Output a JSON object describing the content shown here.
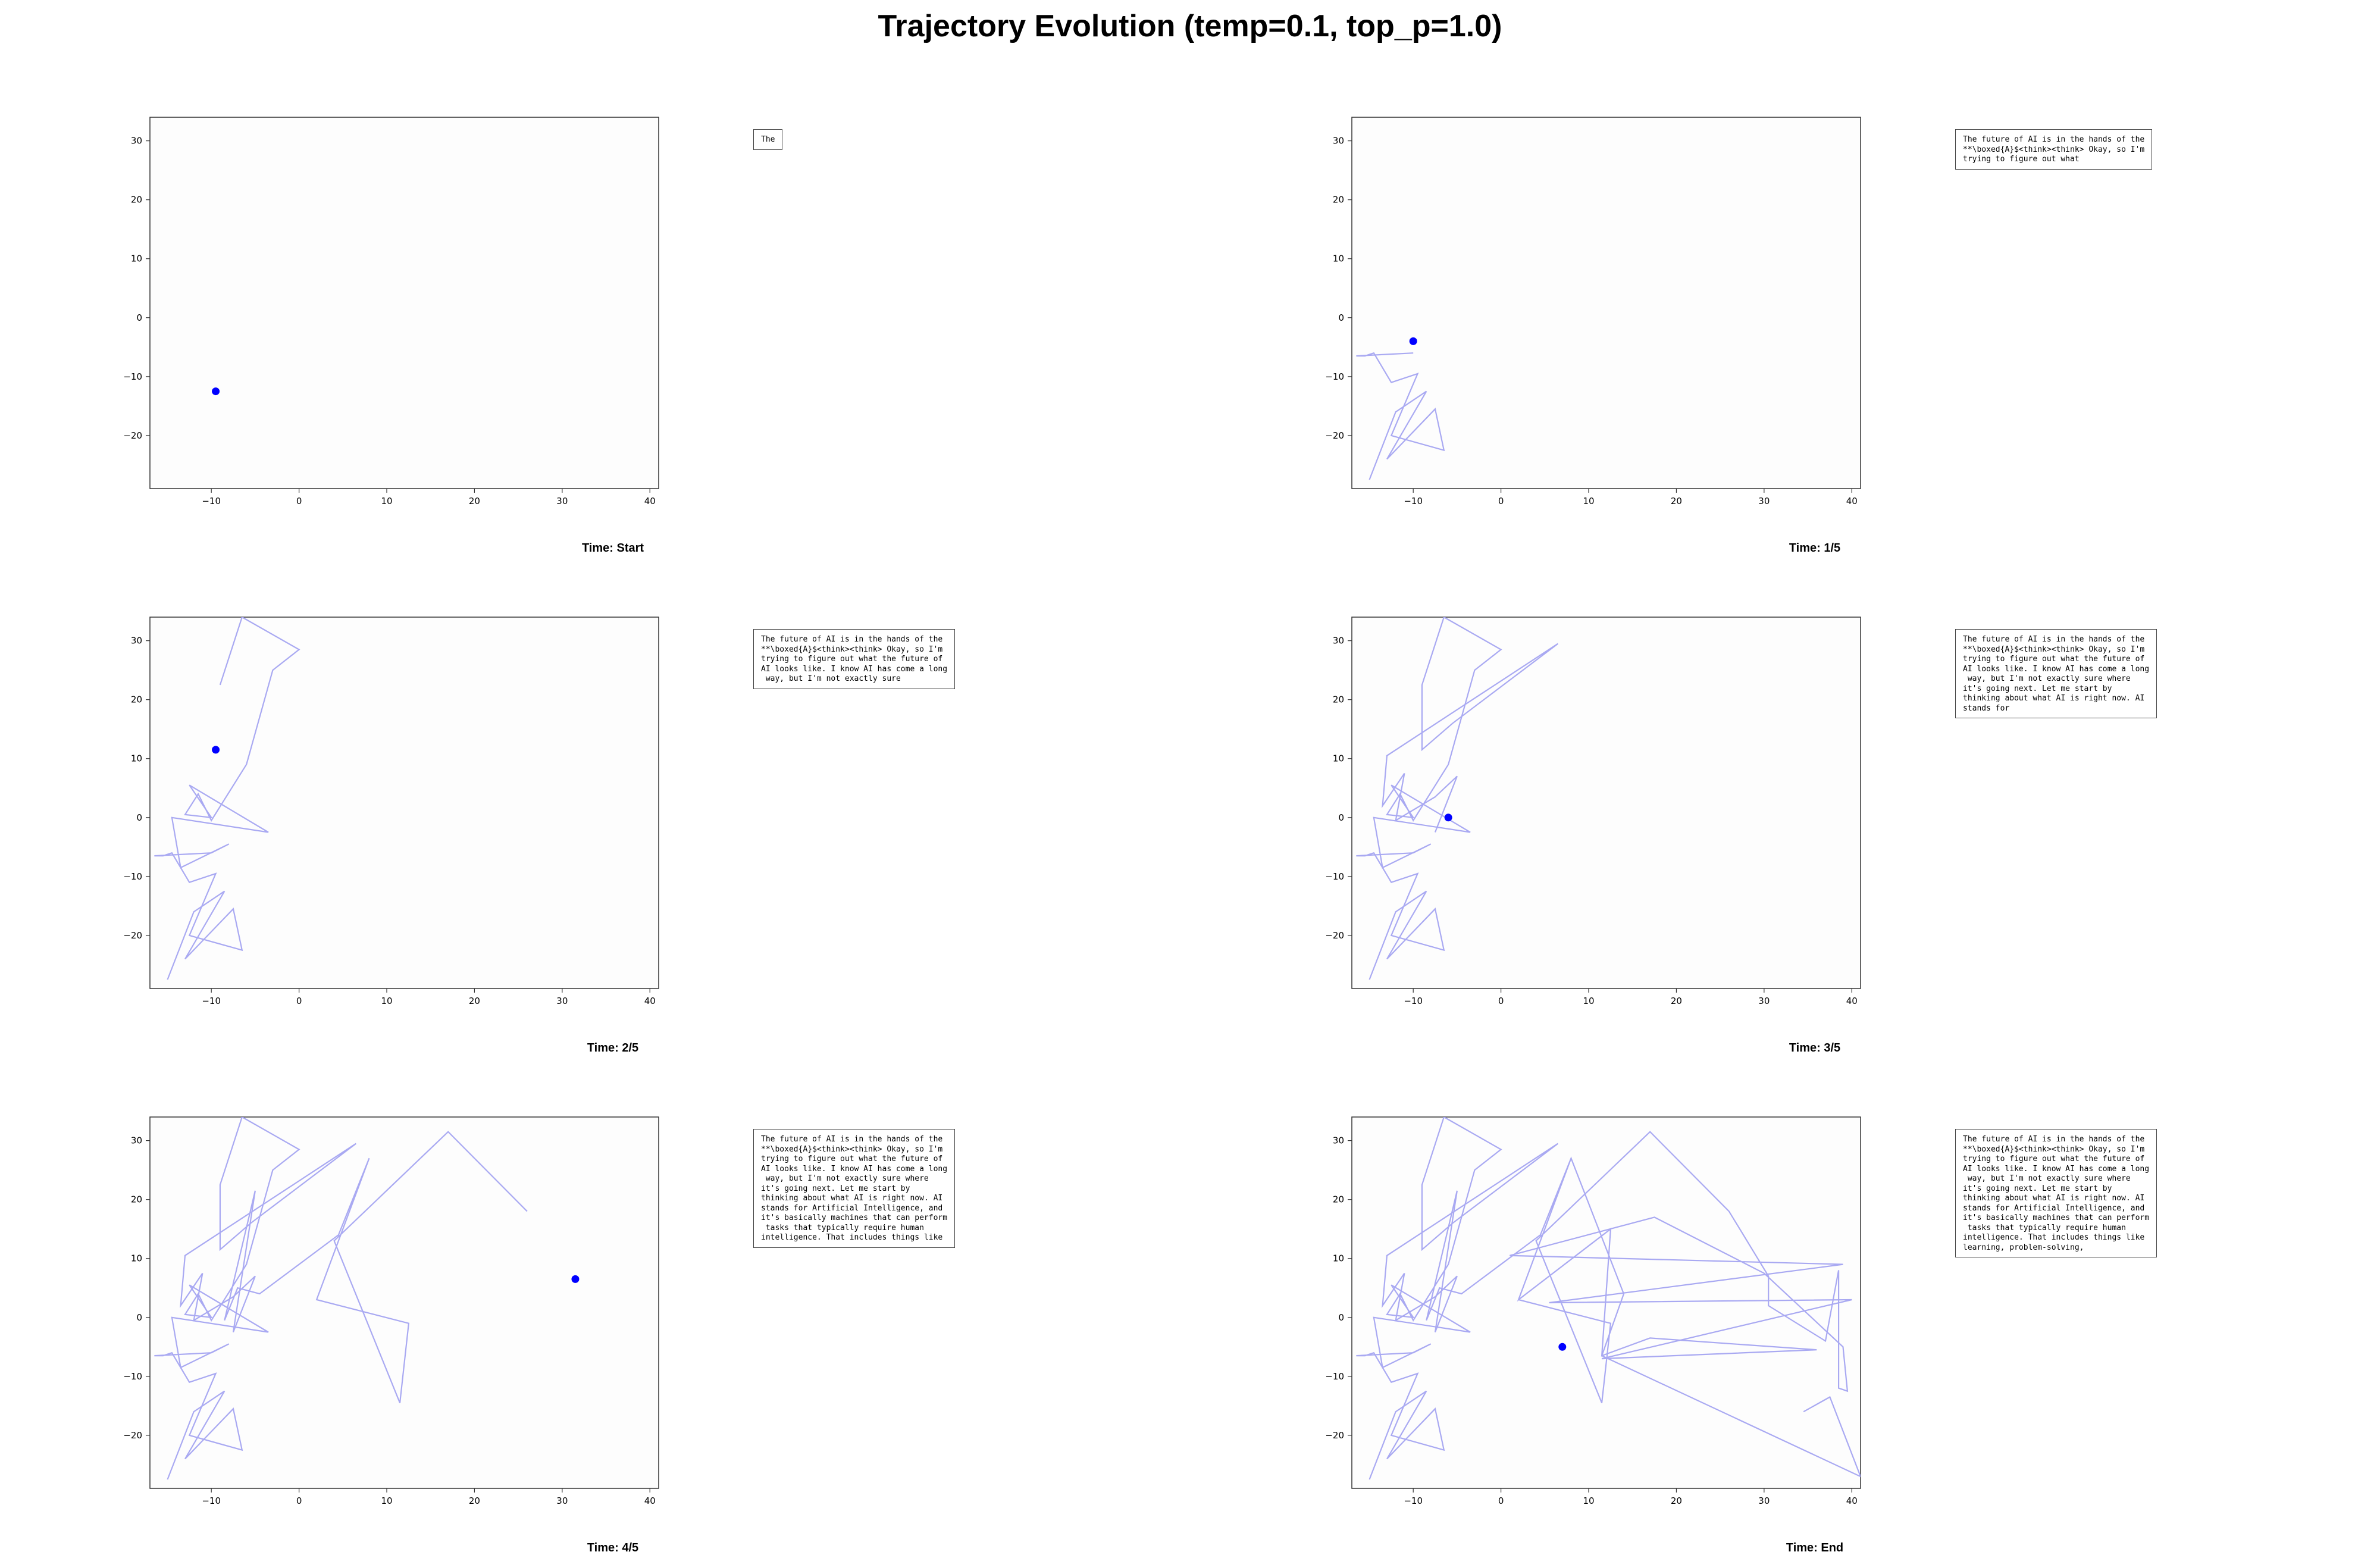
{
  "title": "Trajectory Evolution (temp=0.1, top_p=1.0)",
  "chart_data": [
    {
      "type": "line",
      "time_label": "Time: Start",
      "text": "The",
      "xlim": [
        -17,
        41
      ],
      "ylim": [
        -29,
        34
      ],
      "xticks": [
        -10,
        0,
        10,
        20,
        30,
        40
      ],
      "yticks": [
        -20,
        -10,
        0,
        10,
        20,
        30
      ],
      "line_color": "#a9a9f2",
      "marker_color": "#0000ff",
      "path": [],
      "current": [
        -9.5,
        -12.5
      ]
    },
    {
      "type": "line",
      "time_label": "Time: 1/5",
      "text": "The future of AI is in the hands of the\n**\\boxed{A}$<think><think> Okay, so I'm\ntrying to figure out what",
      "xlim": [
        -17,
        41
      ],
      "ylim": [
        -29,
        34
      ],
      "xticks": [
        -10,
        0,
        10,
        20,
        30,
        40
      ],
      "yticks": [
        -20,
        -10,
        0,
        10,
        20,
        30
      ],
      "line_color": "#a9a9f2",
      "marker_color": "#0000ff",
      "path": [
        [
          -15,
          -27.5
        ],
        [
          -12,
          -16
        ],
        [
          -8.5,
          -12.5
        ],
        [
          -13,
          -24
        ],
        [
          -7.5,
          -15.5
        ],
        [
          -6.5,
          -22.5
        ],
        [
          -12.5,
          -20
        ],
        [
          -9.5,
          -9.5
        ],
        [
          -12.5,
          -11
        ],
        [
          -14.5,
          -6
        ],
        [
          -15.5,
          -6.5
        ],
        [
          -16.5,
          -6.5
        ],
        [
          -10,
          -6
        ]
      ],
      "current": [
        -10,
        -4
      ]
    },
    {
      "type": "line",
      "time_label": "Time: 2/5",
      "text": "The future of AI is in the hands of the\n**\\boxed{A}$<think><think> Okay, so I'm\ntrying to figure out what the future of\nAI looks like. I know AI has come a long\n way, but I'm not exactly sure",
      "xlim": [
        -17,
        41
      ],
      "ylim": [
        -29,
        34
      ],
      "xticks": [
        -10,
        0,
        10,
        20,
        30,
        40
      ],
      "yticks": [
        -20,
        -10,
        0,
        10,
        20,
        30
      ],
      "line_color": "#a9a9f2",
      "marker_color": "#0000ff",
      "path": [
        [
          -15,
          -27.5
        ],
        [
          -12,
          -16
        ],
        [
          -8.5,
          -12.5
        ],
        [
          -13,
          -24
        ],
        [
          -7.5,
          -15.5
        ],
        [
          -6.5,
          -22.5
        ],
        [
          -12.5,
          -20
        ],
        [
          -9.5,
          -9.5
        ],
        [
          -12.5,
          -11
        ],
        [
          -14.5,
          -6
        ],
        [
          -15.5,
          -6.5
        ],
        [
          -16.5,
          -6.5
        ],
        [
          -10,
          -6
        ],
        [
          -8,
          -4.5
        ],
        [
          -13.5,
          -8.5
        ],
        [
          -14.5,
          0
        ],
        [
          -3.5,
          -2.5
        ],
        [
          -12.5,
          5.5
        ],
        [
          -10,
          0
        ],
        [
          -13,
          0.5
        ],
        [
          -11.5,
          4
        ],
        [
          -10,
          -0.5
        ],
        [
          -6,
          9
        ],
        [
          -3,
          25
        ],
        [
          0,
          28.5
        ],
        [
          -6.5,
          34
        ],
        [
          -9,
          22.5
        ]
      ],
      "current": [
        -9.5,
        11.5
      ]
    },
    {
      "type": "line",
      "time_label": "Time: 3/5",
      "text": "The future of AI is in the hands of the\n**\\boxed{A}$<think><think> Okay, so I'm\ntrying to figure out what the future of\nAI looks like. I know AI has come a long\n way, but I'm not exactly sure where\nit's going next. Let me start by\nthinking about what AI is right now. AI\nstands for",
      "xlim": [
        -17,
        41
      ],
      "ylim": [
        -29,
        34
      ],
      "xticks": [
        -10,
        0,
        10,
        20,
        30,
        40
      ],
      "yticks": [
        -20,
        -10,
        0,
        10,
        20,
        30
      ],
      "line_color": "#a9a9f2",
      "marker_color": "#0000ff",
      "path": [
        [
          -15,
          -27.5
        ],
        [
          -12,
          -16
        ],
        [
          -8.5,
          -12.5
        ],
        [
          -13,
          -24
        ],
        [
          -7.5,
          -15.5
        ],
        [
          -6.5,
          -22.5
        ],
        [
          -12.5,
          -20
        ],
        [
          -9.5,
          -9.5
        ],
        [
          -12.5,
          -11
        ],
        [
          -14.5,
          -6
        ],
        [
          -15.5,
          -6.5
        ],
        [
          -16.5,
          -6.5
        ],
        [
          -10,
          -6
        ],
        [
          -8,
          -4.5
        ],
        [
          -13.5,
          -8.5
        ],
        [
          -14.5,
          0
        ],
        [
          -3.5,
          -2.5
        ],
        [
          -12.5,
          5.5
        ],
        [
          -10,
          0
        ],
        [
          -13,
          0.5
        ],
        [
          -11.5,
          4
        ],
        [
          -10,
          -0.5
        ],
        [
          -6,
          9
        ],
        [
          -3,
          25
        ],
        [
          0,
          28.5
        ],
        [
          -6.5,
          34
        ],
        [
          -9,
          22.5
        ],
        [
          -9,
          11.5
        ],
        [
          -5.5,
          16
        ],
        [
          6.5,
          29.5
        ],
        [
          -13,
          10.5
        ],
        [
          -13.5,
          2
        ],
        [
          -11,
          7.5
        ],
        [
          -12,
          -0.5
        ],
        [
          -7.5,
          3.5
        ],
        [
          -5,
          7
        ],
        [
          -7.5,
          -2.5
        ]
      ],
      "current": [
        -6,
        0
      ]
    },
    {
      "type": "line",
      "time_label": "Time: 4/5",
      "text": "The future of AI is in the hands of the\n**\\boxed{A}$<think><think> Okay, so I'm\ntrying to figure out what the future of\nAI looks like. I know AI has come a long\n way, but I'm not exactly sure where\nit's going next. Let me start by\nthinking about what AI is right now. AI\nstands for Artificial Intelligence, and\nit's basically machines that can perform\n tasks that typically require human\nintelligence. That includes things like",
      "xlim": [
        -17,
        41
      ],
      "ylim": [
        -29,
        34
      ],
      "xticks": [
        -10,
        0,
        10,
        20,
        30,
        40
      ],
      "yticks": [
        -20,
        -10,
        0,
        10,
        20,
        30
      ],
      "line_color": "#a9a9f2",
      "marker_color": "#0000ff",
      "path": [
        [
          -15,
          -27.5
        ],
        [
          -12,
          -16
        ],
        [
          -8.5,
          -12.5
        ],
        [
          -13,
          -24
        ],
        [
          -7.5,
          -15.5
        ],
        [
          -6.5,
          -22.5
        ],
        [
          -12.5,
          -20
        ],
        [
          -9.5,
          -9.5
        ],
        [
          -12.5,
          -11
        ],
        [
          -14.5,
          -6
        ],
        [
          -15.5,
          -6.5
        ],
        [
          -16.5,
          -6.5
        ],
        [
          -10,
          -6
        ],
        [
          -8,
          -4.5
        ],
        [
          -13.5,
          -8.5
        ],
        [
          -14.5,
          0
        ],
        [
          -3.5,
          -2.5
        ],
        [
          -12.5,
          5.5
        ],
        [
          -10,
          0
        ],
        [
          -13,
          0.5
        ],
        [
          -11.5,
          4
        ],
        [
          -10,
          -0.5
        ],
        [
          -6,
          9
        ],
        [
          -3,
          25
        ],
        [
          0,
          28.5
        ],
        [
          -6.5,
          34
        ],
        [
          -9,
          22.5
        ],
        [
          -9,
          11.5
        ],
        [
          -5.5,
          16
        ],
        [
          6.5,
          29.5
        ],
        [
          -13,
          10.5
        ],
        [
          -13.5,
          2
        ],
        [
          -11,
          7.5
        ],
        [
          -12,
          -0.5
        ],
        [
          -7.5,
          3.5
        ],
        [
          -5,
          7
        ],
        [
          -7.5,
          -2.5
        ],
        [
          -5,
          21.5
        ],
        [
          -8.5,
          -0.5
        ],
        [
          -7,
          5
        ],
        [
          -4.5,
          4
        ],
        [
          4.5,
          14
        ],
        [
          8,
          27
        ],
        [
          2,
          3
        ],
        [
          12.5,
          -1
        ],
        [
          11.5,
          -14.5
        ],
        [
          4,
          13
        ],
        [
          17,
          31.5
        ],
        [
          26,
          18
        ]
      ],
      "current": [
        31.5,
        6.5
      ]
    },
    {
      "type": "line",
      "time_label": "Time: End",
      "text": "The future of AI is in the hands of the\n**\\boxed{A}$<think><think> Okay, so I'm\ntrying to figure out what the future of\nAI looks like. I know AI has come a long\n way, but I'm not exactly sure where\nit's going next. Let me start by\nthinking about what AI is right now. AI\nstands for Artificial Intelligence, and\nit's basically machines that can perform\n tasks that typically require human\nintelligence. That includes things like\nlearning, problem-solving,",
      "xlim": [
        -17,
        41
      ],
      "ylim": [
        -29,
        34
      ],
      "xticks": [
        -10,
        0,
        10,
        20,
        30,
        40
      ],
      "yticks": [
        -20,
        -10,
        0,
        10,
        20,
        30
      ],
      "line_color": "#a9a9f2",
      "marker_color": "#0000ff",
      "path": [
        [
          -15,
          -27.5
        ],
        [
          -12,
          -16
        ],
        [
          -8.5,
          -12.5
        ],
        [
          -13,
          -24
        ],
        [
          -7.5,
          -15.5
        ],
        [
          -6.5,
          -22.5
        ],
        [
          -12.5,
          -20
        ],
        [
          -9.5,
          -9.5
        ],
        [
          -12.5,
          -11
        ],
        [
          -14.5,
          -6
        ],
        [
          -15.5,
          -6.5
        ],
        [
          -16.5,
          -6.5
        ],
        [
          -10,
          -6
        ],
        [
          -8,
          -4.5
        ],
        [
          -13.5,
          -8.5
        ],
        [
          -14.5,
          0
        ],
        [
          -3.5,
          -2.5
        ],
        [
          -12.5,
          5.5
        ],
        [
          -10,
          0
        ],
        [
          -13,
          0.5
        ],
        [
          -11.5,
          4
        ],
        [
          -10,
          -0.5
        ],
        [
          -6,
          9
        ],
        [
          -3,
          25
        ],
        [
          0,
          28.5
        ],
        [
          -6.5,
          34
        ],
        [
          -9,
          22.5
        ],
        [
          -9,
          11.5
        ],
        [
          -5.5,
          16
        ],
        [
          6.5,
          29.5
        ],
        [
          -13,
          10.5
        ],
        [
          -13.5,
          2
        ],
        [
          -11,
          7.5
        ],
        [
          -12,
          -0.5
        ],
        [
          -7.5,
          3.5
        ],
        [
          -5,
          7
        ],
        [
          -7.5,
          -2.5
        ],
        [
          -5,
          21.5
        ],
        [
          -8.5,
          -0.5
        ],
        [
          -7,
          5
        ],
        [
          -4.5,
          4
        ],
        [
          4.5,
          14
        ],
        [
          8,
          27
        ],
        [
          2,
          3
        ],
        [
          12.5,
          -1
        ],
        [
          11.5,
          -14.5
        ],
        [
          4,
          13
        ],
        [
          17,
          31.5
        ],
        [
          26,
          18
        ],
        [
          30.5,
          7
        ],
        [
          30.5,
          2
        ],
        [
          37,
          -4
        ],
        [
          38.5,
          8
        ],
        [
          38.5,
          -12
        ],
        [
          39.5,
          -12.5
        ],
        [
          39,
          -5
        ],
        [
          30,
          7.5
        ],
        [
          17.5,
          17
        ],
        [
          1,
          10.5
        ],
        [
          39,
          9
        ],
        [
          5.5,
          2.5
        ],
        [
          40,
          3
        ],
        [
          11.5,
          -7
        ],
        [
          36,
          -5.5
        ],
        [
          17,
          -3.5
        ],
        [
          11.5,
          -6.5
        ],
        [
          12.5,
          15
        ],
        [
          2,
          3
        ],
        [
          8,
          27
        ],
        [
          14,
          4
        ],
        [
          11.5,
          -6.5
        ],
        [
          41,
          -27
        ],
        [
          37.5,
          -13.5
        ],
        [
          34.5,
          -16
        ]
      ],
      "current": [
        7,
        -5
      ]
    }
  ]
}
